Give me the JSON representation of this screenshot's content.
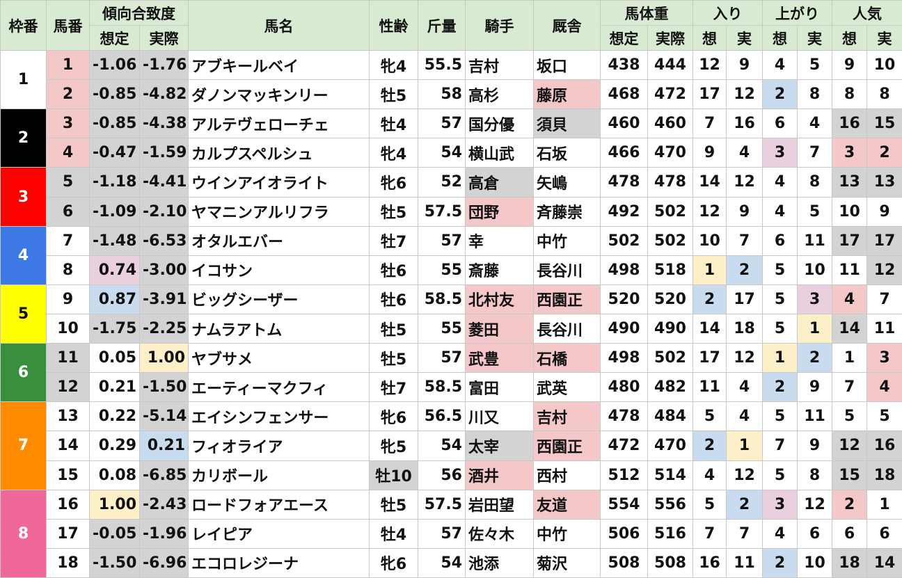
{
  "header": {
    "groups": [
      "枠番",
      "馬番",
      "傾向合致度",
      "馬名",
      "性齢",
      "斤量",
      "騎手",
      "厩舎",
      "馬体重",
      "入り",
      "上がり",
      "人気"
    ],
    "sub": [
      "想定",
      "実際",
      "想定",
      "実際",
      "想",
      "実",
      "想",
      "実",
      "想",
      "実"
    ]
  },
  "frames": [
    "1",
    "2",
    "3",
    "4",
    "5",
    "6",
    "7",
    "8"
  ],
  "table": {
    "rows": [
      [
        "1",
        "-1.06",
        "-1.76",
        "アブキールベイ",
        "牝4",
        "55.5",
        "吉村",
        "坂口",
        "438",
        "444",
        "12",
        "9",
        "4",
        "5",
        "9",
        "10"
      ],
      [
        "2",
        "-0.85",
        "-4.82",
        "ダノンマッキンリー",
        "牡5",
        "58",
        "高杉",
        "藤原",
        "468",
        "472",
        "17",
        "12",
        "2",
        "8",
        "8",
        "8"
      ],
      [
        "3",
        "-0.85",
        "-4.38",
        "アルテヴェローチェ",
        "牡4",
        "57",
        "国分優",
        "須貝",
        "460",
        "460",
        "7",
        "16",
        "6",
        "4",
        "16",
        "15"
      ],
      [
        "4",
        "-0.47",
        "-1.59",
        "カルプスペルシュ",
        "牝4",
        "54",
        "横山武",
        "石坂",
        "466",
        "470",
        "9",
        "4",
        "3",
        "7",
        "3",
        "2"
      ],
      [
        "5",
        "-1.18",
        "-4.41",
        "ウインアイオライト",
        "牝6",
        "52",
        "高倉",
        "矢嶋",
        "478",
        "478",
        "14",
        "12",
        "4",
        "8",
        "13",
        "13"
      ],
      [
        "6",
        "-1.09",
        "-2.10",
        "ヤマニンアルリフラ",
        "牡5",
        "57.5",
        "団野",
        "斉藤崇",
        "492",
        "502",
        "12",
        "9",
        "4",
        "5",
        "10",
        "9"
      ],
      [
        "7",
        "-1.48",
        "-6.53",
        "オタルエバー",
        "牡7",
        "57",
        "幸",
        "中竹",
        "502",
        "502",
        "10",
        "7",
        "6",
        "11",
        "17",
        "17"
      ],
      [
        "8",
        "0.74",
        "-3.00",
        "イコサン",
        "牡6",
        "55",
        "斎藤",
        "長谷川",
        "498",
        "518",
        "1",
        "2",
        "5",
        "10",
        "11",
        "12"
      ],
      [
        "9",
        "0.87",
        "-3.91",
        "ビッグシーザー",
        "牡6",
        "58.5",
        "北村友",
        "西園正",
        "520",
        "520",
        "2",
        "17",
        "5",
        "3",
        "4",
        "7"
      ],
      [
        "10",
        "-1.75",
        "-2.25",
        "ナムラアトム",
        "牡5",
        "55",
        "菱田",
        "長谷川",
        "490",
        "490",
        "14",
        "18",
        "5",
        "1",
        "14",
        "11"
      ],
      [
        "11",
        "0.05",
        "1.00",
        "ヤブサメ",
        "牡5",
        "57",
        "武豊",
        "石橋",
        "498",
        "502",
        "17",
        "12",
        "1",
        "2",
        "1",
        "3"
      ],
      [
        "12",
        "0.21",
        "-1.50",
        "エーティーマクフィ",
        "牡7",
        "58.5",
        "富田",
        "武英",
        "480",
        "482",
        "11",
        "4",
        "2",
        "9",
        "7",
        "4"
      ],
      [
        "13",
        "0.22",
        "-5.14",
        "エイシンフェンサー",
        "牝6",
        "56.5",
        "川又",
        "吉村",
        "478",
        "484",
        "5",
        "4",
        "5",
        "11",
        "5",
        "5"
      ],
      [
        "14",
        "0.29",
        "0.21",
        "フィオライア",
        "牝5",
        "54",
        "太宰",
        "西園正",
        "472",
        "470",
        "2",
        "1",
        "7",
        "9",
        "12",
        "16"
      ],
      [
        "15",
        "0.08",
        "-6.85",
        "カリボール",
        "牡10",
        "56",
        "酒井",
        "西村",
        "512",
        "514",
        "4",
        "12",
        "5",
        "8",
        "15",
        "18"
      ],
      [
        "16",
        "1.00",
        "-2.43",
        "ロードフォアエース",
        "牡5",
        "57.5",
        "岩田望",
        "友道",
        "554",
        "556",
        "5",
        "2",
        "3",
        "12",
        "2",
        "1"
      ],
      [
        "17",
        "-0.05",
        "-1.96",
        "レイピア",
        "牡4",
        "57",
        "佐々木",
        "中竹",
        "506",
        "516",
        "7",
        "7",
        "4",
        "6",
        "6",
        "6"
      ],
      [
        "18",
        "-1.50",
        "-6.96",
        "エコロレジーナ",
        "牝6",
        "54",
        "池添",
        "菊沢",
        "508",
        "508",
        "16",
        "11",
        "2",
        "10",
        "18",
        "14"
      ]
    ]
  }
}
